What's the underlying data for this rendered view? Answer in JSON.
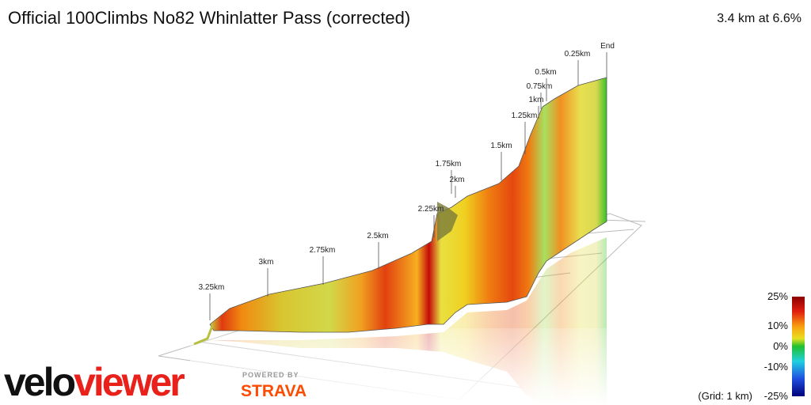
{
  "header": {
    "title": "Official 100Climbs No82 Whinlatter Pass (corrected)",
    "summary": "3.4 km at 6.6%"
  },
  "markers": [
    "3.25km",
    "3km",
    "2.75km",
    "2.5km",
    "2.25km",
    "2km",
    "1.75km",
    "1.5km",
    "1.25km",
    "1km",
    "0.75km",
    "0.5km",
    "0.25km",
    "End"
  ],
  "legend": {
    "labels": [
      "25%",
      "10%",
      "0%",
      "-10%",
      "-25%"
    ],
    "grid_note": "(Grid: 1 km)"
  },
  "branding": {
    "logo_start": "velo",
    "logo_end": "viewer",
    "powered_by": "POWERED BY",
    "strava": "STRAVA"
  }
}
